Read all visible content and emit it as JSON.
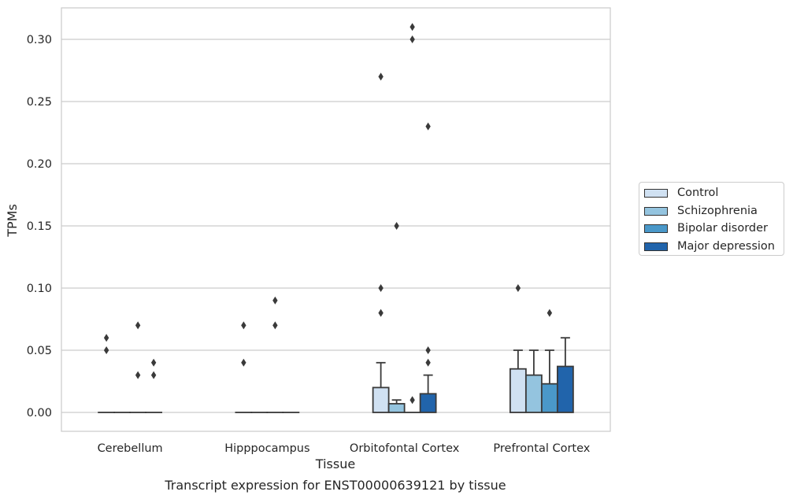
{
  "chart_data": {
    "type": "bar",
    "title": "Transcript expression for ENST00000639121 by tissue",
    "xlabel": "Tissue",
    "ylabel": "TPMs",
    "ylim": [
      -0.015,
      0.326
    ],
    "yticks": [
      "0.00",
      "0.05",
      "0.10",
      "0.15",
      "0.20",
      "0.25",
      "0.30"
    ],
    "ytick_values": [
      0,
      0.05,
      0.1,
      0.15,
      0.2,
      0.25,
      0.3
    ],
    "grid": "horizontal",
    "legend_position": "right",
    "categories": [
      "Cerebellum",
      "Hipppocampus",
      "Orbitofontal Cortex",
      "Prefrontal Cortex"
    ],
    "series": [
      {
        "name": "Control",
        "color": "#d0e1f2",
        "values": [
          0,
          0,
          0.02,
          0.035
        ],
        "whisker_top": [
          0,
          0,
          0.04,
          0.05
        ],
        "outliers": [
          [
            0.05,
            0.06
          ],
          [
            0.04,
            0.07
          ],
          [
            0.08,
            0.1,
            0.27
          ],
          [
            0.1
          ]
        ]
      },
      {
        "name": "Schizophrenia",
        "color": "#94c4df",
        "values": [
          0,
          0,
          0.007,
          0.03
        ],
        "whisker_top": [
          0,
          0,
          0.01,
          0.05
        ],
        "outliers": [
          [],
          [],
          [
            0.15
          ],
          []
        ]
      },
      {
        "name": "Bipolar disorder",
        "color": "#4a98c9",
        "values": [
          0,
          0,
          0,
          0.023
        ],
        "whisker_top": [
          0,
          0,
          0,
          0.05
        ],
        "outliers": [
          [
            0.03,
            0.07
          ],
          [
            0.07,
            0.09
          ],
          [
            0.01,
            0.3,
            0.31
          ],
          [
            0.08
          ]
        ]
      },
      {
        "name": "Major depression",
        "color": "#2164ab",
        "values": [
          0,
          0,
          0.015,
          0.037
        ],
        "whisker_top": [
          0,
          0,
          0.03,
          0.06
        ],
        "outliers": [
          [
            0.03,
            0.04
          ],
          [],
          [
            0.04,
            0.05,
            0.23
          ],
          []
        ]
      }
    ]
  }
}
